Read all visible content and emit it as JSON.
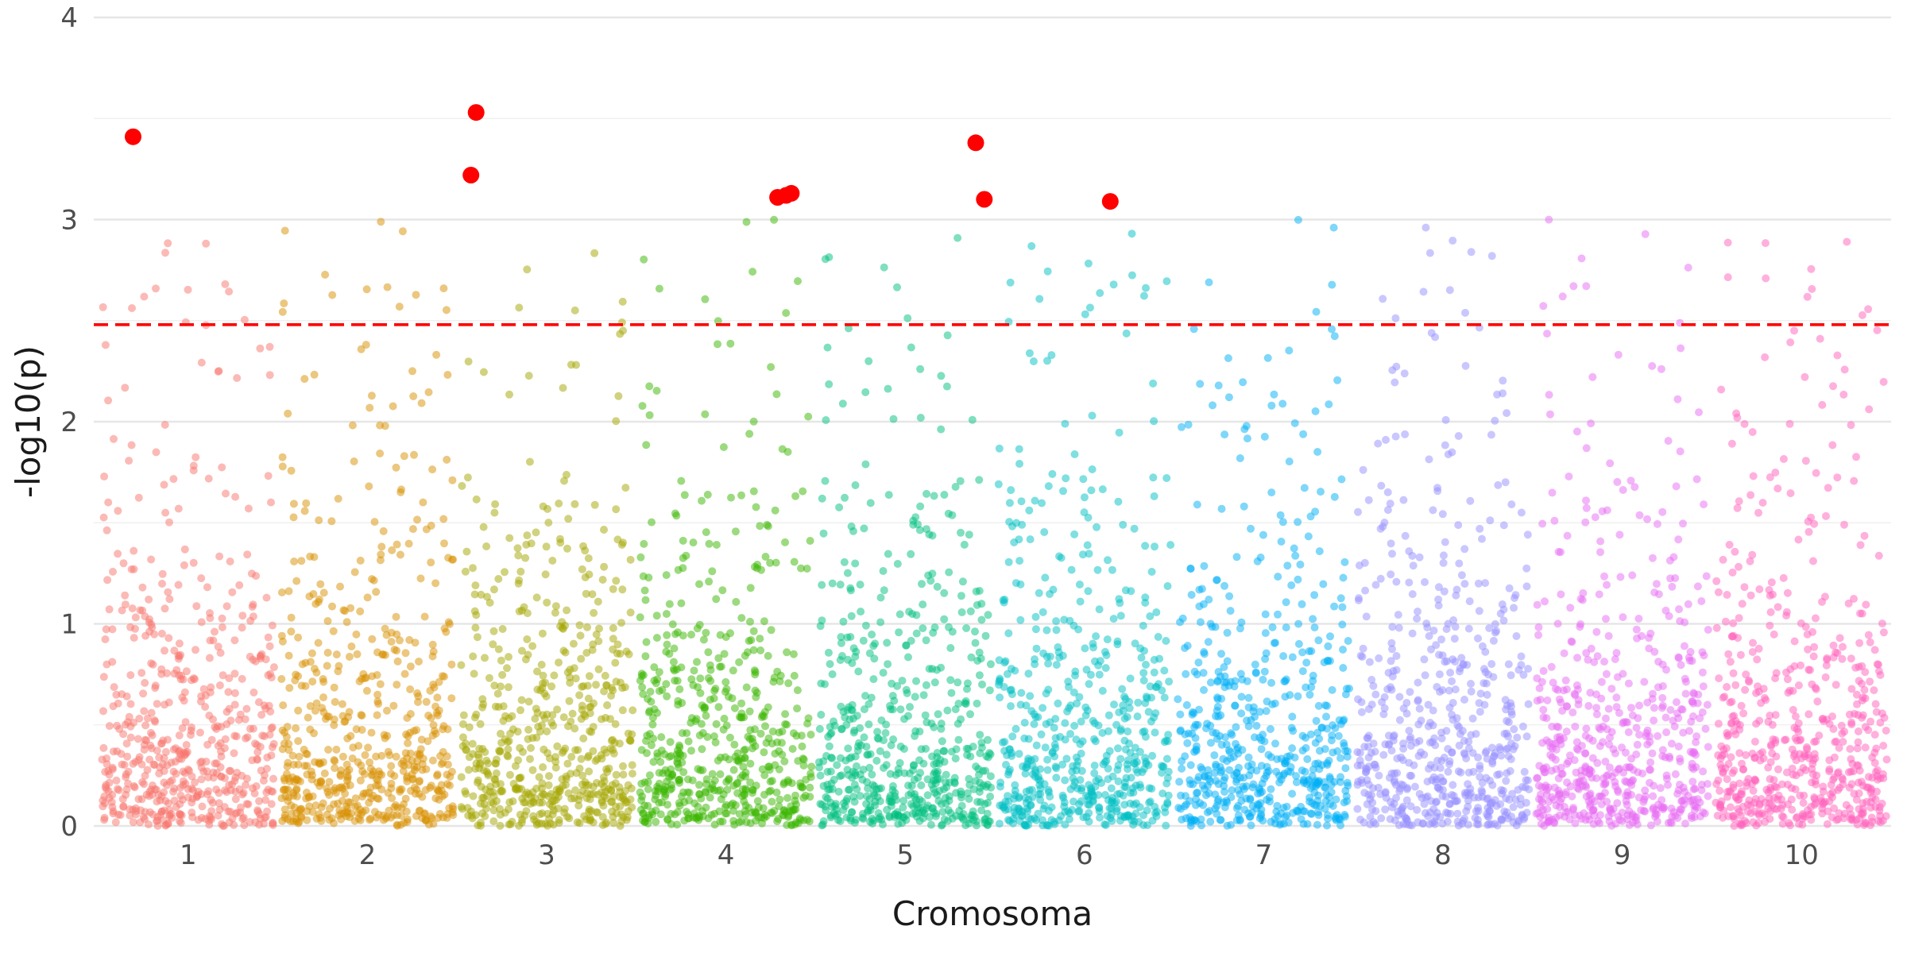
{
  "chart_data": {
    "type": "scatter",
    "title": "",
    "xlabel": "Cromosoma",
    "ylabel": "-log10(p)",
    "ylim": [
      0,
      4
    ],
    "y_ticks": [
      "0",
      "1",
      "2",
      "3",
      "4"
    ],
    "grid": true,
    "legend": "none",
    "threshold": {
      "value": 2.48,
      "color": "#ff0000",
      "style": "dashed"
    },
    "chromosomes": [
      {
        "label": "1",
        "color": "#F8766D"
      },
      {
        "label": "2",
        "color": "#D89000"
      },
      {
        "label": "3",
        "color": "#A3A500"
      },
      {
        "label": "4",
        "color": "#39B600"
      },
      {
        "label": "5",
        "color": "#00BF7D"
      },
      {
        "label": "6",
        "color": "#00BFC4"
      },
      {
        "label": "7",
        "color": "#00B0F6"
      },
      {
        "label": "8",
        "color": "#9590FF"
      },
      {
        "label": "9",
        "color": "#E76BF3"
      },
      {
        "label": "10",
        "color": "#FF62BC"
      }
    ],
    "highlighted_points": [
      {
        "chromosome": "1",
        "position": 0.18,
        "y": 3.41
      },
      {
        "chromosome": "3",
        "position": 0.09,
        "y": 3.53
      },
      {
        "chromosome": "3",
        "position": 0.06,
        "y": 3.22
      },
      {
        "chromosome": "4",
        "position": 0.8,
        "y": 3.11
      },
      {
        "chromosome": "4",
        "position": 0.85,
        "y": 3.12
      },
      {
        "chromosome": "4",
        "position": 0.88,
        "y": 3.13
      },
      {
        "chromosome": "5",
        "position": 0.91,
        "y": 3.38
      },
      {
        "chromosome": "5",
        "position": 0.96,
        "y": 3.1
      },
      {
        "chromosome": "6",
        "position": 0.65,
        "y": 3.09
      }
    ],
    "highlight_color": "#ff0000"
  }
}
